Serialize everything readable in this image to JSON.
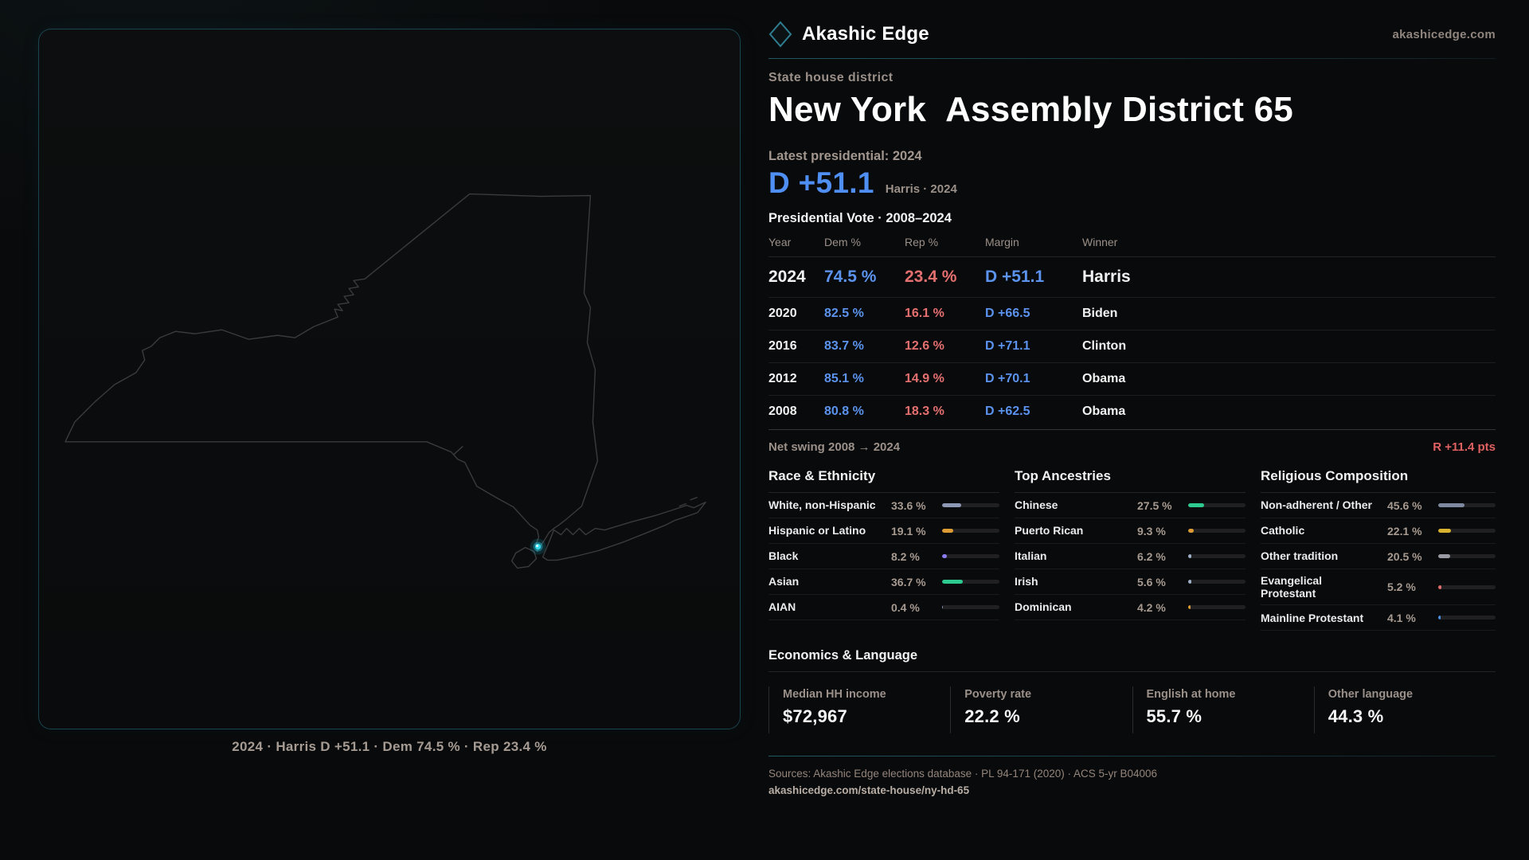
{
  "brand": {
    "name": "Akashic Edge",
    "domain": "akashicedge.com",
    "accent_teal": "#2fa8c2"
  },
  "page": {
    "kicker": "State house district",
    "title_state": "New York",
    "title_rest": "Assembly District 65",
    "latest_label": "Latest presidential: 2024",
    "headline_margin": "D +51.1",
    "headline_detail": "Harris · 2024",
    "dem_color": "#5b93ee",
    "rep_color": "#e57070"
  },
  "map": {
    "region": "New York State outline with district highlight dot near Lower Manhattan",
    "caption": "2024 · Harris D +51.1 · Dem 74.5 % · Rep 23.4 %",
    "dot_color": "#35dbeb"
  },
  "pres_table": {
    "title": "Presidential Vote · 2008–2024",
    "columns": [
      "Year",
      "Dem %",
      "Rep %",
      "Margin",
      "Winner"
    ],
    "rows": [
      [
        "2024",
        "74.5 %",
        "23.4 %",
        "D +51.1",
        "Harris"
      ],
      [
        "2020",
        "82.5 %",
        "16.1 %",
        "D +66.5",
        "Biden"
      ],
      [
        "2016",
        "83.7 %",
        "12.6 %",
        "D +71.1",
        "Clinton"
      ],
      [
        "2012",
        "85.1 %",
        "14.9 %",
        "D +70.1",
        "Obama"
      ],
      [
        "2008",
        "80.8 %",
        "18.3 %",
        "D +62.5",
        "Obama"
      ]
    ]
  },
  "net_swing": {
    "label": "Net swing 2008 → 2024",
    "value": "R +11.4 pts"
  },
  "demographics": [
    {
      "title": "Race & Ethnicity",
      "rows": [
        {
          "label": "White, non-Hispanic",
          "value": "33.6 %",
          "pct": 33.6,
          "color": "#8d99b4"
        },
        {
          "label": "Hispanic or Latino",
          "value": "19.1 %",
          "pct": 19.1,
          "color": "#dd9c33"
        },
        {
          "label": "Black",
          "value": "8.2 %",
          "pct": 8.2,
          "color": "#8b7cf0"
        },
        {
          "label": "Asian",
          "value": "36.7 %",
          "pct": 36.7,
          "color": "#2ec98f"
        },
        {
          "label": "AIAN",
          "value": "0.4 %",
          "pct": 0.4,
          "color": "#8d99b4"
        }
      ]
    },
    {
      "title": "Top Ancestries",
      "rows": [
        {
          "label": "Chinese",
          "value": "27.5 %",
          "pct": 27.5,
          "color": "#2ec98f"
        },
        {
          "label": "Puerto Rican",
          "value": "9.3 %",
          "pct": 9.3,
          "color": "#dd9c33"
        },
        {
          "label": "Italian",
          "value": "6.2 %",
          "pct": 6.2,
          "color": "#9fb0c9"
        },
        {
          "label": "Irish",
          "value": "5.6 %",
          "pct": 5.6,
          "color": "#9fb0c9"
        },
        {
          "label": "Dominican",
          "value": "4.2 %",
          "pct": 4.2,
          "color": "#dd9c33"
        }
      ]
    },
    {
      "title": "Religious Composition",
      "rows": [
        {
          "label": "Non-adherent / Other",
          "value": "45.6 %",
          "pct": 45.6,
          "color": "#7e89a0"
        },
        {
          "label": "Catholic",
          "value": "22.1 %",
          "pct": 22.1,
          "color": "#d9b32f"
        },
        {
          "label": "Other tradition",
          "value": "20.5 %",
          "pct": 20.5,
          "color": "#9a9aa5"
        },
        {
          "label": "Evangelical Protestant",
          "value": "5.2 %",
          "pct": 5.2,
          "color": "#e06c6c"
        },
        {
          "label": "Mainline Protestant",
          "value": "4.1 %",
          "pct": 4.1,
          "color": "#4a90e2"
        }
      ]
    }
  ],
  "economics": {
    "title": "Economics & Language",
    "stats": [
      {
        "label": "Median HH income",
        "value": "$72,967"
      },
      {
        "label": "Poverty rate",
        "value": "22.2 %"
      },
      {
        "label": "English at home",
        "value": "55.7 %"
      },
      {
        "label": "Other language",
        "value": "44.3 %"
      }
    ]
  },
  "footer": {
    "sources": "Sources: Akashic Edge elections database · PL 94-171 (2020) · ACS 5-yr B04006",
    "link": "akashicedge.com/state-house/ny-hd-65"
  }
}
